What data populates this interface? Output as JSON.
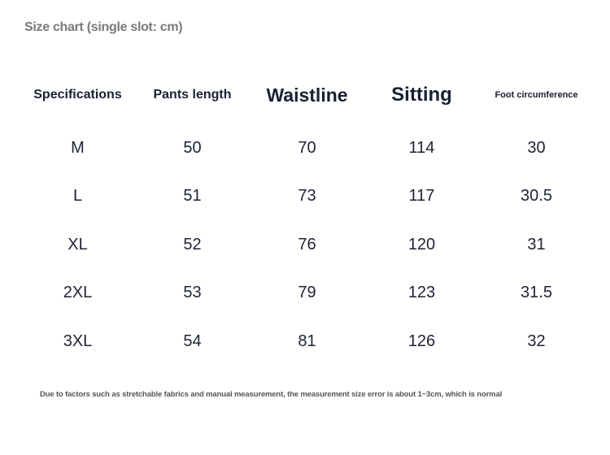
{
  "title": "Size chart (single slot: cm)",
  "table": {
    "headers": [
      "Specifications",
      "Pants length",
      "Waistline",
      "Sitting",
      "Foot circumference"
    ],
    "rows": [
      [
        "M",
        "50",
        "70",
        "114",
        "30"
      ],
      [
        "L",
        "51",
        "73",
        "117",
        "30.5"
      ],
      [
        "XL",
        "52",
        "76",
        "120",
        "31"
      ],
      [
        "2XL",
        "53",
        "79",
        "123",
        "31.5"
      ],
      [
        "3XL",
        "54",
        "81",
        "126",
        "32"
      ]
    ]
  },
  "note": "Due to factors such as stretchable fabrics and manual measurement, the measurement size error is about 1~3cm, which is normal"
}
